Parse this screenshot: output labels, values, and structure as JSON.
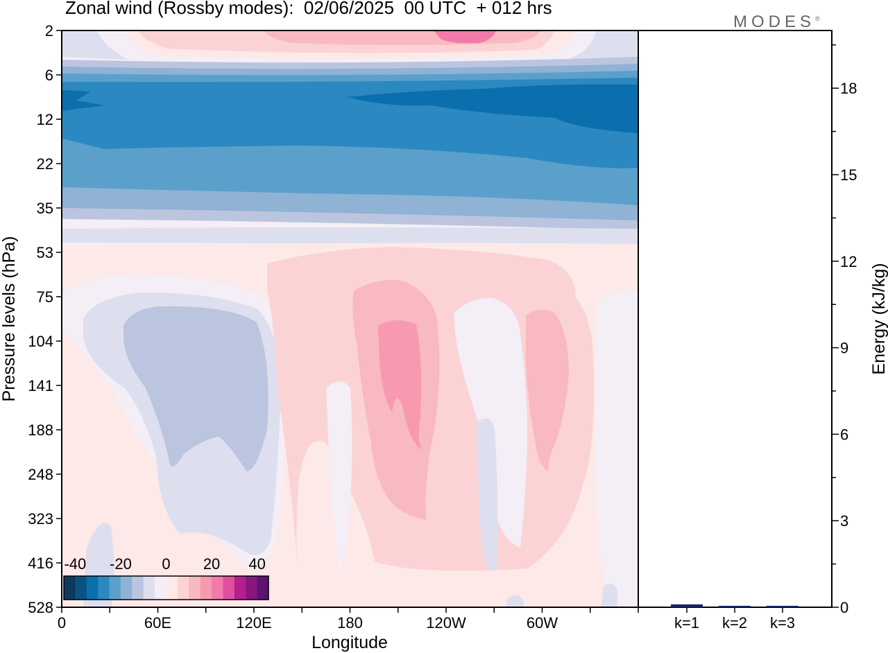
{
  "title": "Zonal wind (Rossby modes):  02/06/2025  00 UTC  + 012 hrs",
  "brand": "MODES",
  "brand_mark": "®",
  "colors": {
    "scale": [
      "#0d3a5c",
      "#0a5380",
      "#0b6fad",
      "#2b88c0",
      "#5ba0cb",
      "#8fb2d5",
      "#bcc5df",
      "#dedfee",
      "#f4eef6",
      "#fde9e8",
      "#fbd3d4",
      "#f9b9c0",
      "#f79ab0",
      "#f27aa9",
      "#e04f9f",
      "#b3208d",
      "#8a167f",
      "#5e1270"
    ],
    "bg": "#f4eef6"
  },
  "chart_data": [
    {
      "type": "heatmap",
      "title": "Zonal wind (Rossby modes):  02/06/2025  00 UTC  + 012 hrs",
      "xlabel": "Longitude",
      "ylabel": "Pressure levels (hPa)",
      "x_ticks": [
        "0",
        "60E",
        "120E",
        "180",
        "120W",
        "60W"
      ],
      "y_ticks": [
        "2",
        "6",
        "12",
        "22",
        "35",
        "53",
        "75",
        "104",
        "141",
        "188",
        "248",
        "323",
        "416",
        "528"
      ],
      "y_scale": "log (inverted, 2 at top, 528 at bottom)",
      "colorbar": {
        "ticks": [
          "-40",
          "-20",
          "0",
          "20",
          "40"
        ],
        "range": [
          -45,
          45
        ],
        "step": 5
      },
      "features": [
        {
          "region": "2 hPa, 150E-80W",
          "value": 25
        },
        {
          "region": "8-12 hPa, all longitudes",
          "value": -30
        },
        {
          "region": "12-22 hPa, all longitudes",
          "value": -25
        },
        {
          "region": "22-35 hPa, all longitudes",
          "value": -15
        },
        {
          "region": "75-416 hPa, 40E-120E",
          "value": -10
        },
        {
          "region": "104-248 hPa, 200E-220E",
          "value": 25
        },
        {
          "region": "104-248 hPa, 280E-300E",
          "value": 15
        }
      ]
    },
    {
      "type": "bar",
      "categories": [
        "k=1",
        "k=2",
        "k=3"
      ],
      "values": [
        0.1,
        0.05,
        0.05
      ],
      "ylabel": "Energy (kJ/kg)",
      "y_ticks": [
        "0",
        "3",
        "6",
        "9",
        "12",
        "15",
        "18"
      ],
      "ylim": [
        0,
        20
      ]
    }
  ]
}
